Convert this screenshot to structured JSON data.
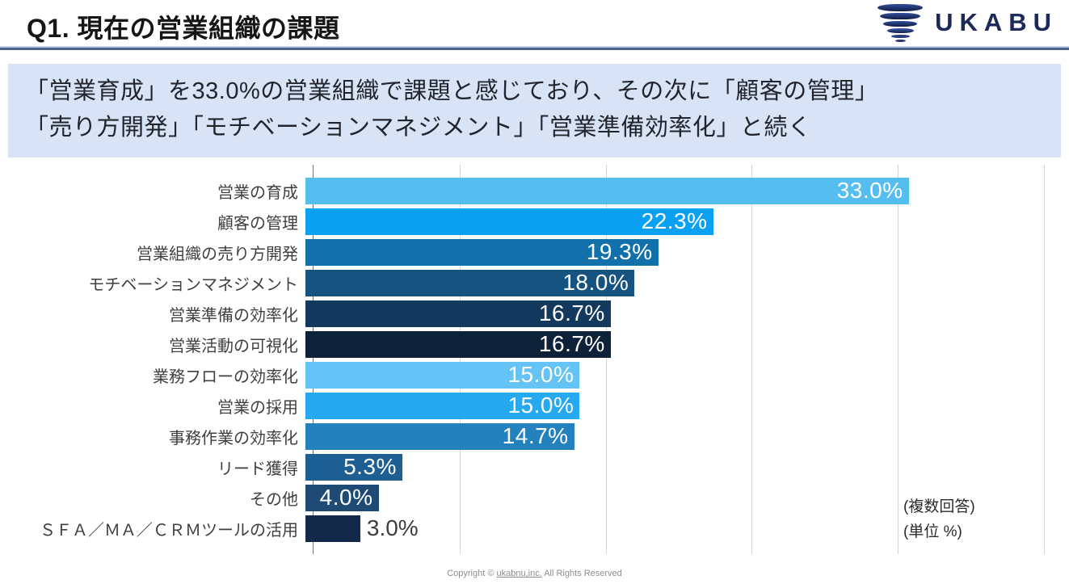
{
  "header": {
    "title": "Q1. 現在の営業組織の課題",
    "logo_text": "UKABU"
  },
  "summary": {
    "line1": "「営業育成」を33.0%の営業組織で課題と感じており、その次に「顧客の管理」",
    "line2": "「売り方開発」「モチベーションマネジメント」「営業準備効率化」と続く"
  },
  "chart_data": {
    "type": "bar",
    "orientation": "horizontal",
    "title": "",
    "xlabel": "",
    "ylabel": "",
    "xlim": [
      0,
      40
    ],
    "gridline_step": 8,
    "grid": true,
    "unit": "%",
    "categories": [
      "営業の育成",
      "顧客の管理",
      "営業組織の売り方開発",
      "モチベーションマネジメント",
      "営業準備の効率化",
      "営業活動の可視化",
      "業務フローの効率化",
      "営業の採用",
      "事務作業の効率化",
      "リード獲得",
      "その他",
      "ＳＦＡ／ＭＡ／ＣＲＭツールの活用"
    ],
    "values": [
      33.0,
      22.3,
      19.3,
      18.0,
      16.7,
      16.7,
      15.0,
      15.0,
      14.7,
      5.3,
      4.0,
      3.0
    ],
    "value_labels": [
      "33.0%",
      "22.3%",
      "19.3%",
      "18.0%",
      "16.7%",
      "16.7%",
      "15.0%",
      "15.0%",
      "14.7%",
      "5.3%",
      "4.0%",
      "3.0%"
    ],
    "bar_colors": [
      "#56bdf0",
      "#0ba1f2",
      "#1271ab",
      "#175380",
      "#133a5e",
      "#0d2138",
      "#66c3f5",
      "#27a9f2",
      "#2381bd",
      "#1d5f92",
      "#1e4a74",
      "#14294a"
    ],
    "label_positions": [
      "inside",
      "inside",
      "inside",
      "inside",
      "inside",
      "inside",
      "inside",
      "inside",
      "inside",
      "inside",
      "inside",
      "outside"
    ],
    "notes": [
      "(複数回答)",
      "(単位 %)"
    ]
  },
  "footer": {
    "prefix": "Copyright © ",
    "link": "ukabnu,inc.",
    "suffix": " All Rights Reserved"
  }
}
